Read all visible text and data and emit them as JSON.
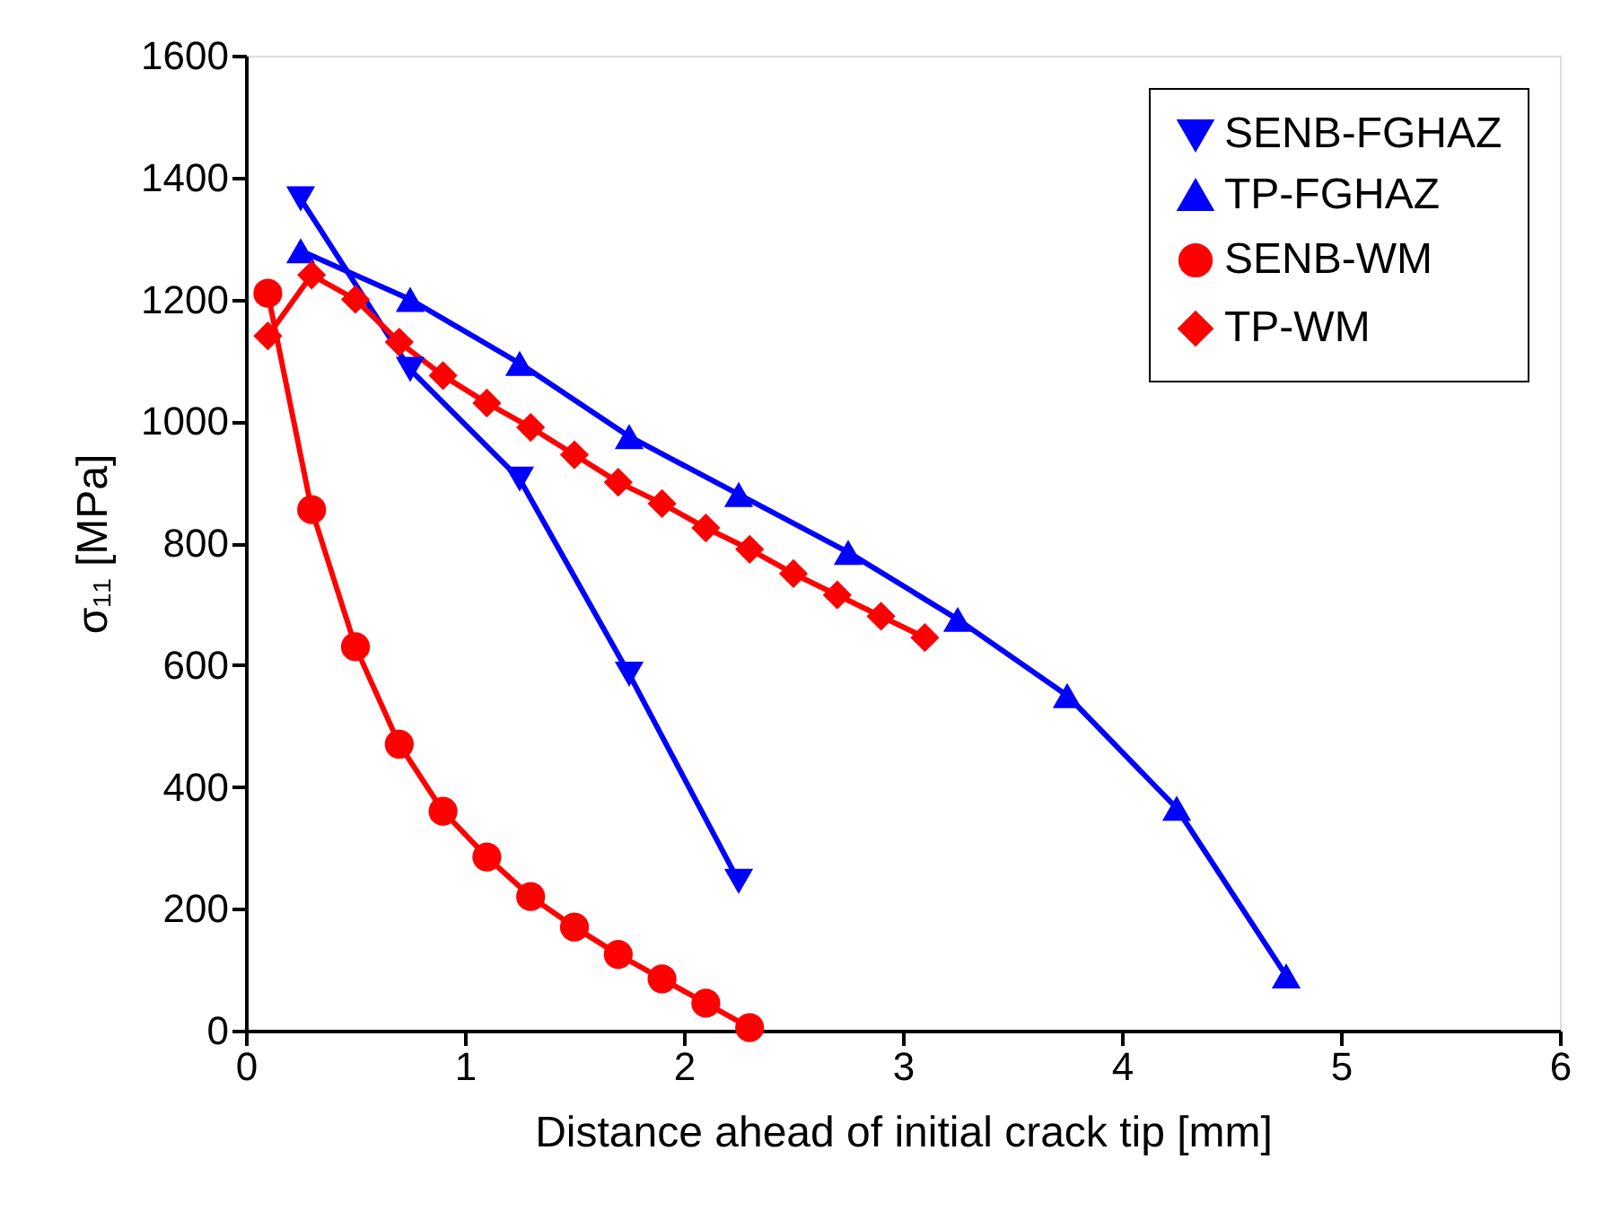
{
  "chart_data": {
    "type": "line",
    "xlabel": "Distance ahead of initial crack tip [mm]",
    "ylabel": "σ₁₁ [MPa]",
    "xlim": [
      0,
      6
    ],
    "xticks": [
      0,
      1,
      2,
      3,
      4,
      5,
      6
    ],
    "ylim": [
      0,
      1600
    ],
    "yticks": [
      0,
      200,
      400,
      600,
      800,
      1000,
      1200,
      1400,
      1600
    ],
    "grid": false,
    "legend": "top right",
    "line_style": "solid",
    "series": [
      {
        "name": "SENB-FGHAZ",
        "color": "#0000ff",
        "marker": "triangle-down",
        "x": [
          0.25,
          0.75,
          1.25,
          1.75,
          2.25
        ],
        "values": [
          1365,
          1085,
          905,
          585,
          245
        ]
      },
      {
        "name": "TP-FGHAZ",
        "color": "#0000ff",
        "marker": "triangle",
        "x": [
          0.25,
          0.75,
          1.25,
          1.75,
          2.25,
          2.75,
          3.25,
          3.75,
          4.25,
          4.75
        ],
        "values": [
          1280,
          1200,
          1095,
          975,
          880,
          785,
          675,
          550,
          365,
          90
        ]
      },
      {
        "name": "SENB-WM",
        "color": "#ff0000",
        "marker": "circle",
        "x": [
          0.1,
          0.3,
          0.5,
          0.7,
          0.9,
          1.1,
          1.3,
          1.5,
          1.7,
          1.9,
          2.1,
          2.3
        ],
        "values": [
          1210,
          855,
          630,
          470,
          360,
          285,
          220,
          170,
          125,
          85,
          45,
          5
        ]
      },
      {
        "name": "TP-WM",
        "color": "#ff0000",
        "marker": "diamond",
        "x": [
          0.1,
          0.3,
          0.5,
          0.7,
          0.9,
          1.1,
          1.3,
          1.5,
          1.7,
          1.9,
          2.1,
          2.3,
          2.5,
          2.7,
          2.9,
          3.1
        ],
        "values": [
          1140,
          1240,
          1200,
          1130,
          1075,
          1030,
          990,
          945,
          900,
          865,
          825,
          790,
          750,
          715,
          680,
          645
        ]
      }
    ]
  }
}
